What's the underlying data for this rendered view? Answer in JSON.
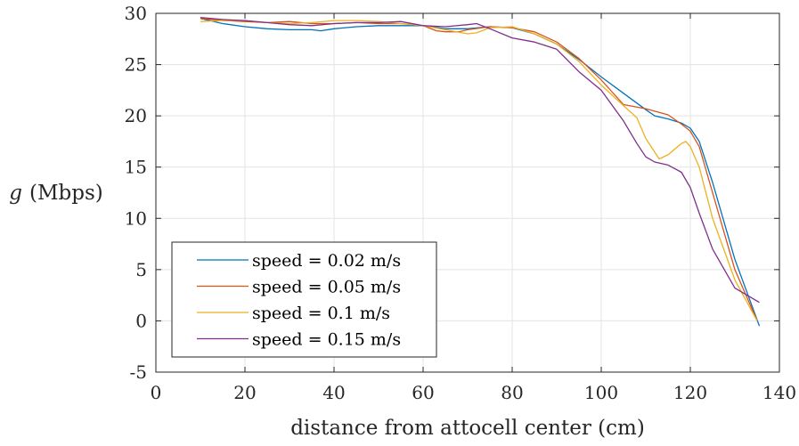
{
  "chart_data": {
    "type": "line",
    "xlabel": "distance from attocell center (cm)",
    "ylabel_var": "g",
    "ylabel_unit": "(Mbps)",
    "xlim": [
      0,
      140
    ],
    "ylim": [
      -5,
      30
    ],
    "xticks": [
      0,
      20,
      40,
      60,
      80,
      100,
      120,
      140
    ],
    "yticks": [
      -5,
      0,
      5,
      10,
      15,
      20,
      25,
      30
    ],
    "ytick_labels": [
      "-5",
      "0",
      "5",
      "10",
      "15",
      "20",
      "25",
      "30"
    ],
    "grid": true,
    "legend_position": "lower-left",
    "series": [
      {
        "name": "speed = 0.02 m/s",
        "color": "#0072BD",
        "x": [
          10,
          15,
          20,
          25,
          30,
          35,
          37,
          40,
          45,
          50,
          55,
          60,
          65,
          70,
          75,
          80,
          85,
          90,
          95,
          100,
          105,
          110,
          112,
          115,
          118,
          120,
          122,
          125,
          130,
          135.5
        ],
        "y": [
          29.5,
          29.0,
          28.7,
          28.5,
          28.4,
          28.4,
          28.3,
          28.5,
          28.7,
          28.8,
          28.8,
          28.8,
          28.5,
          28.5,
          28.7,
          28.6,
          28.0,
          27.0,
          25.5,
          23.8,
          22.2,
          20.6,
          20.0,
          19.7,
          19.3,
          18.8,
          17.5,
          13.5,
          6.0,
          -0.5
        ]
      },
      {
        "name": "speed = 0.05 m/s",
        "color": "#D95319",
        "x": [
          10,
          15,
          20,
          25,
          30,
          35,
          40,
          45,
          50,
          55,
          60,
          63,
          65,
          68,
          70,
          75,
          80,
          85,
          90,
          95,
          100,
          105,
          110,
          115,
          118,
          120,
          122,
          125,
          130,
          135
        ],
        "y": [
          29.5,
          29.3,
          29.2,
          29.1,
          29.2,
          29.0,
          29.0,
          29.1,
          29.0,
          29.0,
          28.8,
          28.3,
          28.2,
          28.2,
          28.4,
          28.7,
          28.6,
          28.2,
          27.2,
          25.6,
          23.5,
          21.1,
          20.7,
          20.1,
          19.2,
          18.5,
          17.0,
          12.5,
          5.0,
          0.0
        ]
      },
      {
        "name": "speed = 0.1 m/s",
        "color": "#EDB120",
        "x": [
          10,
          15,
          20,
          25,
          30,
          35,
          40,
          45,
          50,
          55,
          60,
          65,
          70,
          72,
          75,
          80,
          85,
          90,
          95,
          100,
          105,
          108,
          110,
          113,
          115,
          118,
          119,
          120,
          122,
          125,
          130,
          135
        ],
        "y": [
          29.2,
          29.3,
          29.3,
          29.1,
          29.0,
          29.1,
          29.3,
          29.3,
          29.2,
          29.0,
          28.8,
          28.4,
          28.0,
          28.1,
          28.6,
          28.7,
          28.0,
          27.0,
          25.3,
          23.0,
          21.0,
          19.8,
          17.8,
          15.8,
          16.2,
          17.3,
          17.5,
          17.0,
          15.0,
          10.0,
          4.0,
          0.0
        ]
      },
      {
        "name": "speed = 0.15 m/s",
        "color": "#7E2F8E",
        "x": [
          10,
          15,
          20,
          25,
          30,
          35,
          40,
          45,
          50,
          55,
          60,
          65,
          70,
          72,
          75,
          80,
          85,
          90,
          95,
          100,
          105,
          108,
          110,
          112,
          115,
          118,
          120,
          122,
          125,
          130,
          135.5
        ],
        "y": [
          29.6,
          29.4,
          29.3,
          29.1,
          28.9,
          28.8,
          29.0,
          29.1,
          29.1,
          29.2,
          28.8,
          28.7,
          28.9,
          29.0,
          28.5,
          27.6,
          27.2,
          26.5,
          24.3,
          22.5,
          19.5,
          17.3,
          16.0,
          15.5,
          15.2,
          14.5,
          13.0,
          10.5,
          7.0,
          3.2,
          1.8
        ]
      }
    ]
  }
}
